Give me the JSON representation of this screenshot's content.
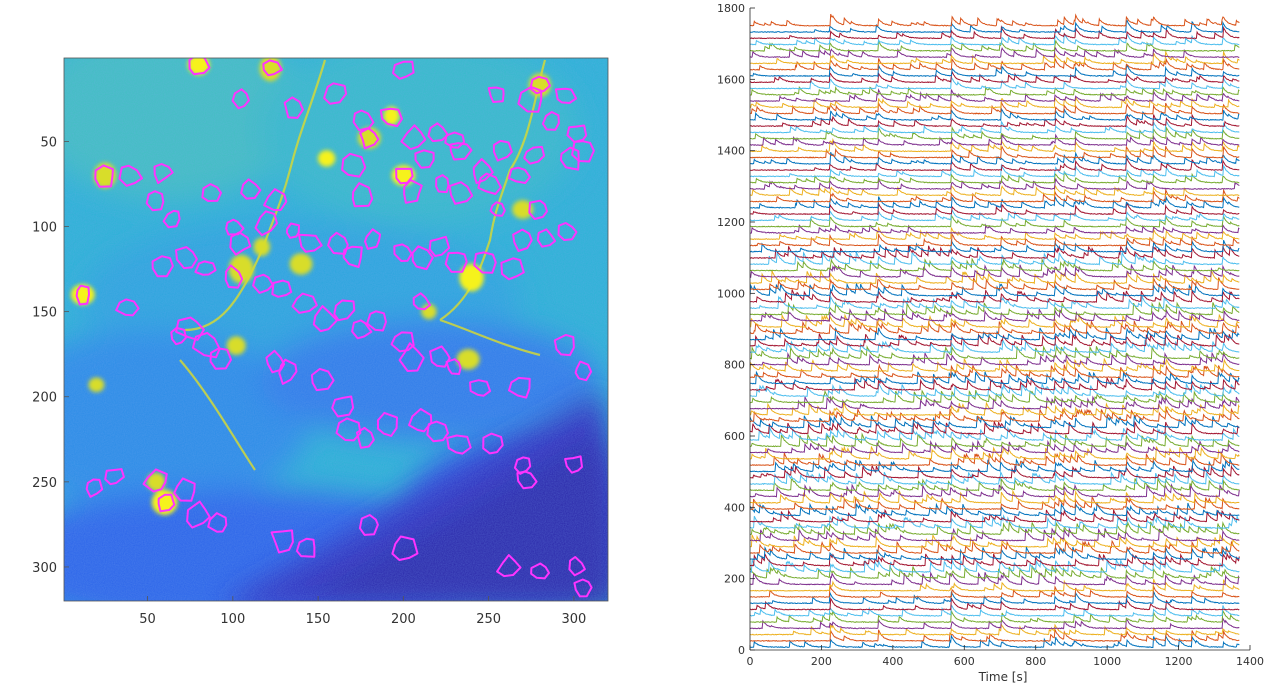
{
  "chart_data": [
    {
      "type": "heatmap",
      "title": "",
      "xlabel": "",
      "ylabel": "",
      "xlim": [
        1,
        320
      ],
      "ylim": [
        1,
        320
      ],
      "y_reversed": true,
      "xticks": [
        50,
        100,
        150,
        200,
        250,
        300
      ],
      "yticks": [
        50,
        100,
        150,
        200,
        250,
        300
      ],
      "colormap": "parula",
      "roi_outline_color": "#ff33ff",
      "roi_centers": [
        [
          80,
          5
        ],
        [
          122,
          7
        ],
        [
          200,
          8
        ],
        [
          160,
          22
        ],
        [
          105,
          25
        ],
        [
          135,
          30
        ],
        [
          176,
          37
        ],
        [
          193,
          35
        ],
        [
          255,
          22
        ],
        [
          275,
          25
        ],
        [
          280,
          17
        ],
        [
          295,
          23
        ],
        [
          287,
          38
        ],
        [
          302,
          45
        ],
        [
          306,
          55
        ],
        [
          180,
          48
        ],
        [
          206,
          48
        ],
        [
          220,
          45
        ],
        [
          230,
          50
        ],
        [
          213,
          60
        ],
        [
          233,
          55
        ],
        [
          258,
          55
        ],
        [
          246,
          68
        ],
        [
          276,
          58
        ],
        [
          298,
          60
        ],
        [
          25,
          70
        ],
        [
          40,
          70
        ],
        [
          58,
          68
        ],
        [
          55,
          85
        ],
        [
          65,
          95
        ],
        [
          88,
          80
        ],
        [
          110,
          78
        ],
        [
          125,
          85
        ],
        [
          170,
          65
        ],
        [
          175,
          82
        ],
        [
          200,
          70
        ],
        [
          205,
          80
        ],
        [
          223,
          75
        ],
        [
          234,
          80
        ],
        [
          250,
          75
        ],
        [
          268,
          70
        ],
        [
          280,
          90
        ],
        [
          296,
          103
        ],
        [
          284,
          107
        ],
        [
          255,
          90
        ],
        [
          270,
          108
        ],
        [
          100,
          100
        ],
        [
          120,
          98
        ],
        [
          104,
          110
        ],
        [
          135,
          103
        ],
        [
          145,
          110
        ],
        [
          162,
          110
        ],
        [
          170,
          117
        ],
        [
          182,
          108
        ],
        [
          200,
          115
        ],
        [
          210,
          118
        ],
        [
          220,
          112
        ],
        [
          232,
          120
        ],
        [
          248,
          121
        ],
        [
          264,
          125
        ],
        [
          58,
          123
        ],
        [
          73,
          118
        ],
        [
          84,
          125
        ],
        [
          100,
          130
        ],
        [
          118,
          133
        ],
        [
          129,
          137
        ],
        [
          142,
          145
        ],
        [
          153,
          155
        ],
        [
          165,
          149
        ],
        [
          175,
          160
        ],
        [
          185,
          155
        ],
        [
          200,
          168
        ],
        [
          205,
          177
        ],
        [
          222,
          177
        ],
        [
          230,
          183
        ],
        [
          245,
          195
        ],
        [
          269,
          195
        ],
        [
          210,
          145
        ],
        [
          295,
          170
        ],
        [
          305,
          185
        ],
        [
          12,
          140
        ],
        [
          38,
          148
        ],
        [
          68,
          165
        ],
        [
          75,
          160
        ],
        [
          85,
          170
        ],
        [
          92,
          178
        ],
        [
          125,
          180
        ],
        [
          132,
          185
        ],
        [
          152,
          190
        ],
        [
          165,
          205
        ],
        [
          168,
          220
        ],
        [
          178,
          225
        ],
        [
          190,
          217
        ],
        [
          210,
          215
        ],
        [
          220,
          220
        ],
        [
          232,
          228
        ],
        [
          253,
          228
        ],
        [
          270,
          240
        ],
        [
          300,
          240
        ],
        [
          272,
          248
        ],
        [
          18,
          253
        ],
        [
          30,
          247
        ],
        [
          55,
          250
        ],
        [
          60,
          262
        ],
        [
          72,
          255
        ],
        [
          80,
          270
        ],
        [
          92,
          275
        ],
        [
          130,
          284
        ],
        [
          143,
          288
        ],
        [
          180,
          275
        ],
        [
          200,
          290
        ],
        [
          262,
          300
        ],
        [
          280,
          303
        ],
        [
          302,
          300
        ],
        [
          305,
          312
        ]
      ],
      "bright_cells": [
        [
          80,
          5
        ],
        [
          122,
          7
        ],
        [
          280,
          17
        ],
        [
          193,
          35
        ],
        [
          25,
          70
        ],
        [
          180,
          48
        ],
        [
          200,
          70
        ],
        [
          270,
          90
        ],
        [
          117,
          112
        ],
        [
          240,
          130
        ],
        [
          215,
          150
        ],
        [
          140,
          122
        ],
        [
          155,
          60
        ],
        [
          105,
          125
        ],
        [
          102,
          170
        ],
        [
          12,
          140
        ],
        [
          20,
          193
        ],
        [
          55,
          250
        ],
        [
          60,
          262
        ],
        [
          238,
          178
        ]
      ]
    },
    {
      "type": "line",
      "title": "",
      "xlabel": "Time [s]",
      "ylabel": "",
      "xlim": [
        0,
        1400
      ],
      "ylim": [
        0,
        1800
      ],
      "xticks": [
        0,
        200,
        400,
        600,
        800,
        1000,
        1200,
        1400
      ],
      "yticks": [
        0,
        200,
        400,
        600,
        800,
        1000,
        1200,
        1400,
        1600,
        1800
      ],
      "grid": false,
      "series_colors": [
        "#0072bd",
        "#d95319",
        "#edb120",
        "#7e2f8e",
        "#77ac30",
        "#4dbeee",
        "#a2142f"
      ],
      "trace_count": 100,
      "trace_spacing": 17.6,
      "trace_duration": 1370,
      "shared_event_times": [
        225,
        232,
        360,
        565,
        705,
        855,
        880,
        912,
        1055,
        1130,
        1165,
        1238,
        1325
      ]
    }
  ]
}
